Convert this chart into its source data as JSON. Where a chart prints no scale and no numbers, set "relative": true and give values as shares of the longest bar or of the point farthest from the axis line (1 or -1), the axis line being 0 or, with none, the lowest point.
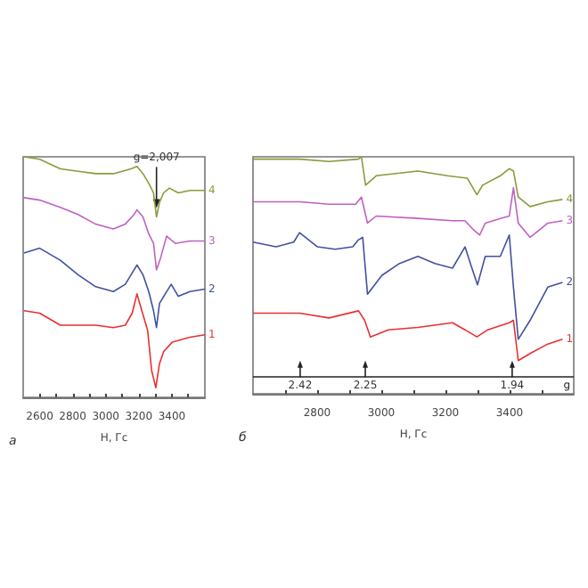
{
  "chart_data": [
    {
      "type": "line",
      "title": "а",
      "xlabel": "H, Гс",
      "relative": true,
      "marker": "none",
      "grid": false,
      "legend": false,
      "xlim": [
        2500,
        3600
      ],
      "xticks": [
        {
          "value": 2600,
          "label": "2600"
        },
        {
          "value": 2700,
          "label": null
        },
        {
          "value": 2800,
          "label": "2800"
        },
        {
          "value": 2900,
          "label": null
        },
        {
          "value": 3000,
          "label": "3000"
        },
        {
          "value": 3100,
          "label": null
        },
        {
          "value": 3200,
          "label": "3200"
        },
        {
          "value": 3300,
          "label": null
        },
        {
          "value": 3400,
          "label": "3400"
        },
        {
          "value": 3500,
          "label": null
        }
      ],
      "annotations": [
        {
          "text": "g=2,007",
          "x": 3307,
          "y": 0.78
        }
      ],
      "series": [
        {
          "name": "4",
          "color": "#8a9a3a",
          "x": [
            2505,
            2600,
            2725,
            2832,
            2939,
            3046,
            3153,
            3189,
            3225,
            3260,
            3289,
            3307,
            3325,
            3350,
            3385,
            3439,
            3510,
            3600
          ],
          "values": [
            1.0,
            0.99,
            0.95,
            0.94,
            0.93,
            0.93,
            0.95,
            0.96,
            0.93,
            0.89,
            0.85,
            0.75,
            0.81,
            0.85,
            0.87,
            0.85,
            0.86,
            0.86
          ]
        },
        {
          "name": "3",
          "color": "#c060c0",
          "x": [
            2505,
            2600,
            2725,
            2832,
            2939,
            3046,
            3118,
            3171,
            3189,
            3225,
            3260,
            3289,
            3307,
            3332,
            3368,
            3421,
            3510,
            3600
          ],
          "values": [
            0.83,
            0.82,
            0.79,
            0.76,
            0.72,
            0.7,
            0.72,
            0.76,
            0.78,
            0.75,
            0.68,
            0.64,
            0.53,
            0.58,
            0.67,
            0.64,
            0.65,
            0.65
          ]
        },
        {
          "name": "2",
          "color": "#4050a0",
          "x": [
            2505,
            2600,
            2725,
            2832,
            2939,
            3046,
            3118,
            3171,
            3189,
            3225,
            3260,
            3289,
            3307,
            3325,
            3360,
            3396,
            3439,
            3510,
            3600
          ],
          "values": [
            0.6,
            0.62,
            0.57,
            0.51,
            0.46,
            0.44,
            0.47,
            0.53,
            0.55,
            0.51,
            0.44,
            0.36,
            0.29,
            0.39,
            0.43,
            0.47,
            0.42,
            0.44,
            0.45
          ]
        },
        {
          "name": "1",
          "color": "#e83030",
          "x": [
            2505,
            2600,
            2725,
            2832,
            2939,
            3046,
            3118,
            3160,
            3189,
            3218,
            3253,
            3278,
            3303,
            3325,
            3350,
            3403,
            3510,
            3600
          ],
          "values": [
            0.36,
            0.35,
            0.3,
            0.3,
            0.3,
            0.29,
            0.3,
            0.35,
            0.43,
            0.36,
            0.28,
            0.11,
            0.04,
            0.14,
            0.19,
            0.23,
            0.25,
            0.26
          ]
        }
      ]
    },
    {
      "type": "line",
      "title": "б",
      "xlabel": "H, Гс",
      "relative": true,
      "marker": "none",
      "grid": false,
      "legend": false,
      "xlim": [
        2600,
        3600
      ],
      "xticks": [
        {
          "value": 2700,
          "label": null
        },
        {
          "value": 2800,
          "label": "2800"
        },
        {
          "value": 2900,
          "label": null
        },
        {
          "value": 3000,
          "label": "3000"
        },
        {
          "value": 3100,
          "label": null
        },
        {
          "value": 3200,
          "label": "3200"
        },
        {
          "value": 3300,
          "label": null
        },
        {
          "value": 3400,
          "label": "3400"
        },
        {
          "value": 3500,
          "label": null
        }
      ],
      "ref_lines": [
        {
          "axis": "y",
          "value": 0.07,
          "label": "g",
          "color": "#222222"
        }
      ],
      "annotations": [
        {
          "text": "2.42",
          "x": 2747,
          "y": 0.14
        },
        {
          "text": "2.25",
          "x": 2950,
          "y": 0.14
        },
        {
          "text": "1.94",
          "x": 3408,
          "y": 0.14
        }
      ],
      "series": [
        {
          "name": "4",
          "color": "#8a9a3a",
          "x": [
            2600,
            2745,
            2837,
            2929,
            2938,
            2951,
            2984,
            3114,
            3206,
            3268,
            3298,
            3316,
            3371,
            3399,
            3412,
            3427,
            3464,
            3519,
            3565
          ],
          "values": [
            0.99,
            0.99,
            0.98,
            0.99,
            1.0,
            0.88,
            0.92,
            0.94,
            0.92,
            0.91,
            0.84,
            0.88,
            0.92,
            0.95,
            0.94,
            0.83,
            0.79,
            0.81,
            0.82
          ]
        },
        {
          "name": "3",
          "color": "#c060c0",
          "x": [
            2600,
            2745,
            2837,
            2920,
            2938,
            2957,
            2984,
            3114,
            3222,
            3261,
            3289,
            3307,
            3324,
            3371,
            3399,
            3412,
            3427,
            3464,
            3519,
            3565
          ],
          "values": [
            0.81,
            0.81,
            0.8,
            0.8,
            0.83,
            0.72,
            0.75,
            0.74,
            0.73,
            0.73,
            0.69,
            0.67,
            0.72,
            0.74,
            0.75,
            0.87,
            0.72,
            0.66,
            0.72,
            0.73
          ]
        },
        {
          "name": "2",
          "color": "#4050a0",
          "x": [
            2600,
            2672,
            2727,
            2745,
            2801,
            2856,
            2911,
            2929,
            2942,
            2957,
            3002,
            3057,
            3114,
            3167,
            3222,
            3261,
            3280,
            3300,
            3324,
            3371,
            3399,
            3412,
            3427,
            3464,
            3519,
            3565
          ],
          "values": [
            0.64,
            0.62,
            0.64,
            0.68,
            0.62,
            0.61,
            0.62,
            0.65,
            0.66,
            0.42,
            0.5,
            0.55,
            0.58,
            0.55,
            0.53,
            0.62,
            0.54,
            0.46,
            0.58,
            0.58,
            0.67,
            0.45,
            0.23,
            0.31,
            0.45,
            0.47
          ]
        },
        {
          "name": "1",
          "color": "#e83030",
          "x": [
            2600,
            2745,
            2837,
            2929,
            2948,
            2966,
            3022,
            3114,
            3222,
            3261,
            3298,
            3332,
            3399,
            3412,
            3427,
            3464,
            3519,
            3565
          ],
          "values": [
            0.34,
            0.34,
            0.32,
            0.35,
            0.31,
            0.24,
            0.27,
            0.28,
            0.3,
            0.27,
            0.24,
            0.27,
            0.3,
            0.31,
            0.14,
            0.17,
            0.21,
            0.23
          ]
        }
      ]
    }
  ]
}
